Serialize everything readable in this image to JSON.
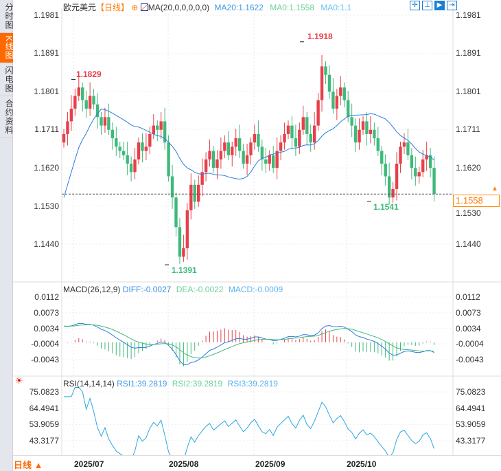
{
  "sidebar": {
    "items": [
      {
        "label": "分时图",
        "active": false
      },
      {
        "label": "K线图",
        "active": true
      },
      {
        "label": "闪电图",
        "active": false
      },
      {
        "label": "合约资料",
        "active": false
      }
    ]
  },
  "header": {
    "symbol": "欧元美元",
    "period": "【日线】",
    "settings_icon": "target-icon",
    "ma_label": "MA(20,0,0,0,0,0)",
    "ma20": "MA20:1.1622",
    "ma0a": "MA0:1.1558",
    "ma0b": "MA0:1.1"
  },
  "tools": [
    {
      "icon": "crosshair-icon",
      "label": "✛"
    },
    {
      "icon": "fit-range-icon",
      "label": "⊥"
    },
    {
      "icon": "play-icon",
      "label": "▶"
    },
    {
      "icon": "goto-end-icon",
      "label": "⇥"
    }
  ],
  "price_axis": {
    "ticks": [
      "1.1981",
      "1.1891",
      "1.1801",
      "1.1711",
      "1.1620",
      "1.1530",
      "1.1440"
    ],
    "values": [
      1.1981,
      1.1891,
      1.1801,
      1.1711,
      1.162,
      1.153,
      1.144
    ]
  },
  "current_price": "1.1558",
  "annotations": {
    "high1": "1.1829",
    "high2": "1.1918",
    "low1": "1.1391",
    "low2": "1.1541"
  },
  "macd": {
    "label": "MACD(26,12,9)",
    "diff": "DIFF:-0.0027",
    "dea": "DEA:-0.0022",
    "macd": "MACD:-0.0009",
    "ticks": [
      "0.0112",
      "0.0073",
      "0.0034",
      "-0.0004",
      "-0.0043"
    ],
    "values": [
      0.0112,
      0.0073,
      0.0034,
      -0.0004,
      -0.0043
    ]
  },
  "rsi": {
    "label": "RSI(14,14,14)",
    "rsi1": "RSI1:39.2819",
    "rsi2": "RSI2:39.2819",
    "rsi3": "RSI3:39.2819",
    "ticks": [
      "75.0823",
      "64.4941",
      "53.9059",
      "43.3177"
    ],
    "values": [
      75.0823,
      64.4941,
      53.9059,
      43.3177
    ]
  },
  "bottom": {
    "period_button": "日线 ▲",
    "months": [
      "2025/07",
      "2025/08",
      "2025/09",
      "2025/10"
    ]
  },
  "colors": {
    "up": "#e8404a",
    "down": "#3fb97a",
    "ma": "#1f7ee0",
    "accent": "#ff6a00"
  },
  "chart_data": {
    "type": "candlestick",
    "closes": [
      1.17,
      1.173,
      1.176,
      1.179,
      1.181,
      1.178,
      1.176,
      1.179,
      1.177,
      1.174,
      1.172,
      1.174,
      1.171,
      1.169,
      1.167,
      1.166,
      1.165,
      1.163,
      1.161,
      1.164,
      1.168,
      1.166,
      1.167,
      1.17,
      1.172,
      1.171,
      1.173,
      1.168,
      1.16,
      1.155,
      1.148,
      1.141,
      1.143,
      1.152,
      1.158,
      1.154,
      1.158,
      1.161,
      1.164,
      1.166,
      1.162,
      1.164,
      1.166,
      1.168,
      1.165,
      1.167,
      1.169,
      1.166,
      1.163,
      1.165,
      1.168,
      1.17,
      1.167,
      1.164,
      1.163,
      1.165,
      1.162,
      1.166,
      1.168,
      1.17,
      1.172,
      1.169,
      1.167,
      1.171,
      1.174,
      1.17,
      1.168,
      1.172,
      1.178,
      1.186,
      1.184,
      1.18,
      1.176,
      1.179,
      1.181,
      1.178,
      1.174,
      1.172,
      1.168,
      1.171,
      1.173,
      1.17,
      1.171,
      1.169,
      1.166,
      1.163,
      1.16,
      1.155,
      1.157,
      1.163,
      1.167,
      1.168,
      1.165,
      1.162,
      1.16,
      1.161,
      1.164,
      1.165,
      1.162,
      1.1558
    ],
    "open_first": 1.168
  }
}
